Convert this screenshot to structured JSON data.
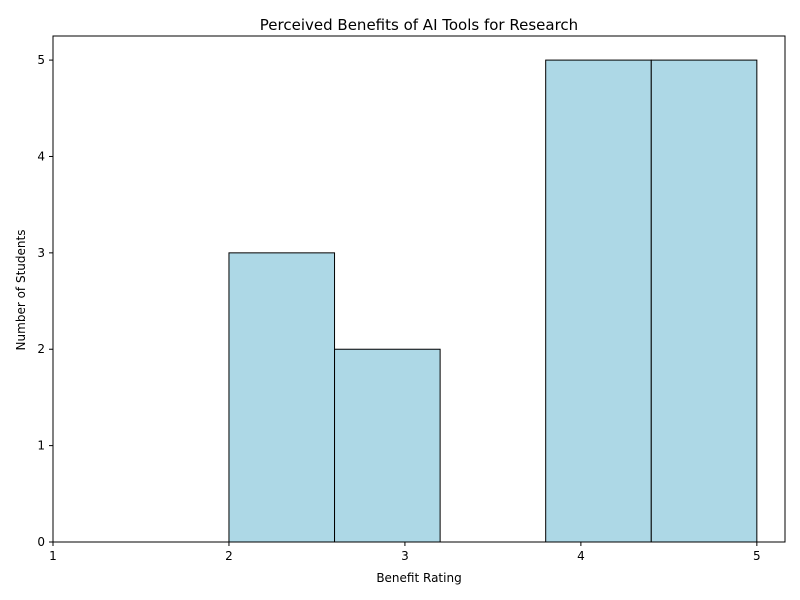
{
  "chart_data": {
    "type": "bar",
    "title": "Perceived Benefits of AI Tools for Research",
    "xlabel": "Benefit Rating",
    "ylabel": "Number of Students",
    "xlim": [
      1,
      5
    ],
    "ylim": [
      0,
      5.25
    ],
    "x_ticks": [
      1,
      2,
      3,
      4,
      5
    ],
    "y_ticks": [
      0,
      1,
      2,
      3,
      4,
      5
    ],
    "bins": [
      {
        "start": 2.0,
        "end": 2.6,
        "count": 3
      },
      {
        "start": 2.6,
        "end": 3.2,
        "count": 2
      },
      {
        "start": 3.2,
        "end": 3.8,
        "count": 0
      },
      {
        "start": 3.8,
        "end": 4.4,
        "count": 5
      },
      {
        "start": 4.4,
        "end": 5.0,
        "count": 5
      }
    ],
    "bar_color": "#add8e6",
    "edge_color": "#000000",
    "grid": false,
    "legend": "none"
  }
}
